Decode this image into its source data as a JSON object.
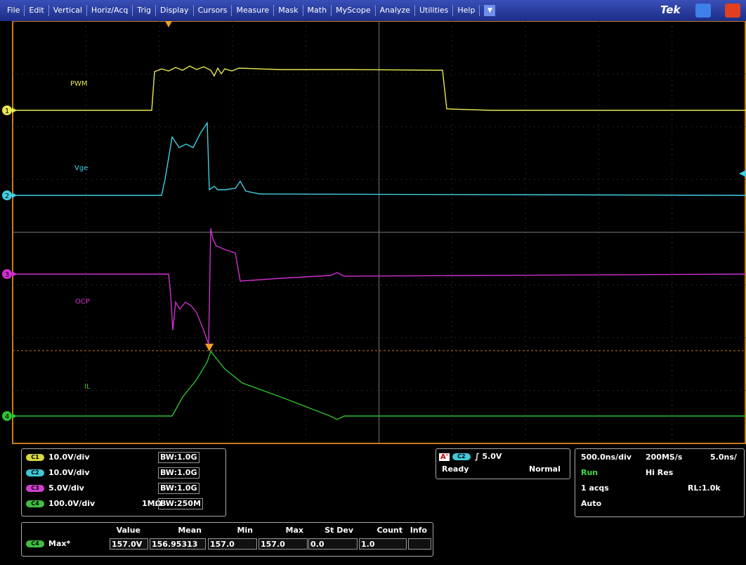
{
  "menu": [
    "File",
    "Edit",
    "Vertical",
    "Horiz/Acq",
    "Trig",
    "Display",
    "Cursors",
    "Measure",
    "Mask",
    "Math",
    "MyScope",
    "Analyze",
    "Utilities",
    "Help"
  ],
  "brand": "Tek",
  "traces": [
    {
      "channel": "1",
      "label": "PWM"
    },
    {
      "channel": "2",
      "label": "Vge"
    },
    {
      "channel": "3",
      "label": "OCP"
    },
    {
      "channel": "4",
      "label": "IL"
    }
  ],
  "channels": [
    {
      "id": "C1",
      "scale": "10.0V/div",
      "bandwidth": "BW:1.0G"
    },
    {
      "id": "C2",
      "scale": "10.0V/div",
      "bandwidth": "BW:1.0G"
    },
    {
      "id": "C3",
      "scale": "5.0V/div",
      "bandwidth": "BW:1.0G"
    },
    {
      "id": "C4",
      "scale": "100.0V/div",
      "impedance": "1MΩ",
      "bandwidth": "BW:250M"
    }
  ],
  "trigger": {
    "marker": "A'",
    "channel": "C2",
    "level": "5.0V",
    "state": "Ready",
    "mode": "Normal"
  },
  "timebase": {
    "scale": "500.0ns/div",
    "rate": "200MS/s",
    "resolution": "5.0ns/",
    "status": "Run",
    "mode": "Hi Res",
    "acqs": "1 acqs",
    "record": "RL:1.0k",
    "trigger_mode": "Auto"
  },
  "measurements": {
    "headers": [
      "Value",
      "Mean",
      "Min",
      "Max",
      "St Dev",
      "Count",
      "Info"
    ],
    "rows": [
      {
        "channel": "C4",
        "name": "Max*",
        "cells": [
          "157.0V",
          "156.95313",
          "157.0",
          "157.0",
          "0.0",
          "1.0"
        ]
      }
    ]
  }
}
